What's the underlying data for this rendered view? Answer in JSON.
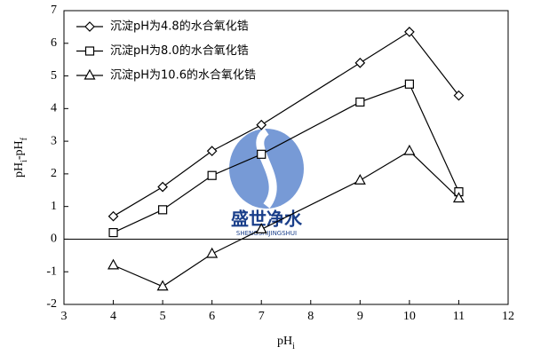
{
  "chart_data": {
    "type": "line",
    "x": [
      4,
      5,
      6,
      7,
      9,
      10,
      11
    ],
    "series": [
      {
        "name": "沉淀pH为4.8的水合氧化锆",
        "color": "#000000",
        "marker": "diamond",
        "values": [
          0.7,
          1.6,
          2.7,
          3.5,
          5.4,
          6.35,
          4.4
        ]
      },
      {
        "name": "沉淀pH为8.0的水合氧化锆",
        "color": "#000000",
        "marker": "square",
        "values": [
          0.2,
          0.9,
          1.95,
          2.6,
          4.2,
          4.75,
          1.45
        ]
      },
      {
        "name": "沉淀pH为10.6的水合氧化锆",
        "color": "#000000",
        "marker": "triangle",
        "values": [
          -0.8,
          -1.45,
          -0.45,
          0.3,
          1.8,
          2.7,
          1.25
        ]
      }
    ],
    "xlabel": [
      {
        "text": "pH"
      },
      {
        "sub": "i"
      }
    ],
    "ylabel": [
      {
        "text": "pH"
      },
      {
        "sub": "i"
      },
      {
        "text": "-pH"
      },
      {
        "sub": "f"
      }
    ],
    "xlim": [
      3,
      12
    ],
    "xticks": [
      3,
      4,
      5,
      6,
      7,
      8,
      9,
      10,
      11,
      12
    ],
    "ylim": [
      -2,
      7
    ],
    "yticks": [
      -2,
      -1,
      0,
      1,
      2,
      3,
      4,
      5,
      6,
      7
    ],
    "zero_line": 0,
    "legend": "top-left",
    "watermark": {
      "title": "盛世净水",
      "subtitle": "SHENGSHIJINGSHUI"
    }
  }
}
